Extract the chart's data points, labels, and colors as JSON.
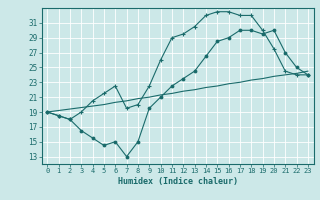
{
  "xlabel": "Humidex (Indice chaleur)",
  "ylabel": "",
  "bg_color": "#cce8e8",
  "grid_color": "#ffffff",
  "line_color": "#1a6b6b",
  "xlim": [
    -0.5,
    23.5
  ],
  "ylim": [
    12,
    33
  ],
  "yticks": [
    13,
    15,
    17,
    19,
    21,
    23,
    25,
    27,
    29,
    31
  ],
  "xticks": [
    0,
    1,
    2,
    3,
    4,
    5,
    6,
    7,
    8,
    9,
    10,
    11,
    12,
    13,
    14,
    15,
    16,
    17,
    18,
    19,
    20,
    21,
    22,
    23
  ],
  "line1_x": [
    0,
    1,
    2,
    3,
    4,
    5,
    6,
    7,
    8,
    9,
    10,
    11,
    12,
    13,
    14,
    15,
    16,
    17,
    18,
    19,
    20,
    21,
    22,
    23
  ],
  "line1_y": [
    19.0,
    18.5,
    18.0,
    19.0,
    20.5,
    21.5,
    22.5,
    19.5,
    20.0,
    22.5,
    26.0,
    29.0,
    29.5,
    30.5,
    32.0,
    32.5,
    32.5,
    32.0,
    32.0,
    30.0,
    27.5,
    24.5,
    24.0,
    24.0
  ],
  "line2_x": [
    0,
    1,
    2,
    3,
    4,
    5,
    6,
    7,
    8,
    9,
    10,
    11,
    12,
    13,
    14,
    15,
    16,
    17,
    18,
    19,
    20,
    21,
    22,
    23
  ],
  "line2_y": [
    19.0,
    18.5,
    18.0,
    16.5,
    15.5,
    14.5,
    15.0,
    13.0,
    15.0,
    19.5,
    21.0,
    22.5,
    23.5,
    24.5,
    26.5,
    28.5,
    29.0,
    30.0,
    30.0,
    29.5,
    30.0,
    27.0,
    25.0,
    24.0
  ],
  "line3_x": [
    0,
    1,
    2,
    3,
    4,
    5,
    6,
    7,
    8,
    9,
    10,
    11,
    12,
    13,
    14,
    15,
    16,
    17,
    18,
    19,
    20,
    21,
    22,
    23
  ],
  "line3_y": [
    19.0,
    19.2,
    19.4,
    19.6,
    19.8,
    20.0,
    20.3,
    20.5,
    20.8,
    21.0,
    21.3,
    21.5,
    21.8,
    22.0,
    22.3,
    22.5,
    22.8,
    23.0,
    23.3,
    23.5,
    23.8,
    24.0,
    24.2,
    24.5
  ]
}
